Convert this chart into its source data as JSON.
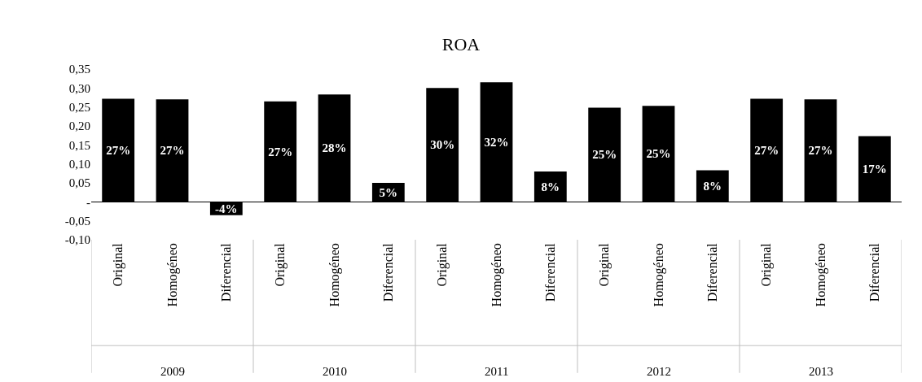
{
  "chart_data": {
    "type": "bar",
    "title": "ROA",
    "categories": [
      "Original",
      "Homogéneo",
      "Diferencial",
      "Original",
      "Homogéneo",
      "Diferencial",
      "Original",
      "Homogéneo",
      "Diferencial",
      "Original",
      "Homogéneo",
      "Diferencial",
      "Original",
      "Homogéneo",
      "Diferencial"
    ],
    "series": [
      {
        "color": "#000000",
        "values": [
          0.272,
          0.27,
          -0.035,
          0.265,
          0.283,
          0.05,
          0.3,
          0.315,
          0.08,
          0.248,
          0.253,
          0.083,
          0.272,
          0.27,
          0.173
        ],
        "value_labels": [
          "27%",
          "27%",
          "-4%",
          "27%",
          "28%",
          "5%",
          "30%",
          "32%",
          "8%",
          "25%",
          "25%",
          "8%",
          "27%",
          "27%",
          "17%"
        ]
      }
    ],
    "annotations": [
      "2009",
      "2010",
      "2011",
      "2012",
      "2013"
    ],
    "ylim": [
      -0.1,
      0.35
    ],
    "yticks": [
      {
        "value": -0.1,
        "label": "-0,10"
      },
      {
        "value": -0.05,
        "label": "-0,05"
      },
      {
        "value": 0,
        "label": "-"
      },
      {
        "value": 0.05,
        "label": "0,05"
      },
      {
        "value": 0.1,
        "label": "0,10"
      },
      {
        "value": 0.15,
        "label": "0,15"
      },
      {
        "value": 0.2,
        "label": "0,20"
      },
      {
        "value": 0.25,
        "label": "0,25"
      },
      {
        "value": 0.3,
        "label": "0,30"
      },
      {
        "value": 0.35,
        "label": "0,35"
      }
    ]
  }
}
